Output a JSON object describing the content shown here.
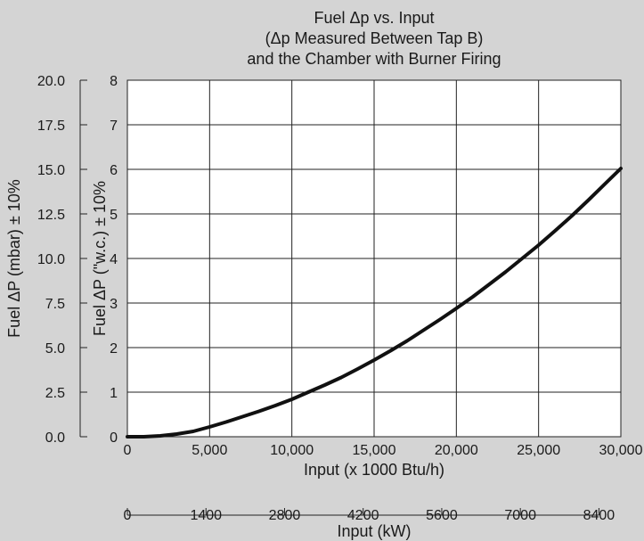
{
  "chart_data": {
    "type": "line",
    "title_lines": [
      "Fuel Δp vs. Input",
      "(Δp Measured Between Tap B)",
      "and the Chamber with Burner Firing"
    ],
    "xlabel": "Input (x 1000 Btu/h)",
    "x2label": "Input (kW)",
    "ylabel": "Fuel ΔP (\"w.c.) ± 10%",
    "y2label": "Fuel ΔP (mbar) ± 10%",
    "xlim": [
      0,
      30000
    ],
    "ylim": [
      0,
      8
    ],
    "y2lim": [
      0,
      20
    ],
    "grid": true,
    "x_ticks": [
      {
        "value": 0,
        "label": "0"
      },
      {
        "value": 5000,
        "label": "5,000"
      },
      {
        "value": 10000,
        "label": "10,000"
      },
      {
        "value": 15000,
        "label": "15,000"
      },
      {
        "value": 20000,
        "label": "20,000"
      },
      {
        "value": 25000,
        "label": "25,000"
      },
      {
        "value": 30000,
        "label": "30,000"
      }
    ],
    "x2_ticks": [
      {
        "value": 0,
        "label": "0"
      },
      {
        "value": 1400,
        "label": "1400"
      },
      {
        "value": 2800,
        "label": "2800"
      },
      {
        "value": 4200,
        "label": "4200"
      },
      {
        "value": 5600,
        "label": "5600"
      },
      {
        "value": 7000,
        "label": "7000"
      },
      {
        "value": 8400,
        "label": "8400"
      }
    ],
    "x2lim": [
      0,
      8790
    ],
    "y_ticks": [
      {
        "value": 0,
        "label": "0"
      },
      {
        "value": 1,
        "label": "1"
      },
      {
        "value": 2,
        "label": "2"
      },
      {
        "value": 3,
        "label": "3"
      },
      {
        "value": 4,
        "label": "4"
      },
      {
        "value": 5,
        "label": "5"
      },
      {
        "value": 6,
        "label": "6"
      },
      {
        "value": 7,
        "label": "7"
      },
      {
        "value": 8,
        "label": "8"
      }
    ],
    "y2_ticks": [
      {
        "value": 0,
        "label": "0.0"
      },
      {
        "value": 2.5,
        "label": "2.5"
      },
      {
        "value": 5,
        "label": "5.0"
      },
      {
        "value": 7.5,
        "label": "7.5"
      },
      {
        "value": 10,
        "label": "10.0"
      },
      {
        "value": 12.5,
        "label": "12.5"
      },
      {
        "value": 15,
        "label": "15.0"
      },
      {
        "value": 17.5,
        "label": "17.5"
      },
      {
        "value": 20,
        "label": "20.0"
      }
    ],
    "series": [
      {
        "color": "#111111",
        "points": [
          [
            0,
            0
          ],
          [
            1000,
            0.0
          ],
          [
            2000,
            0.02
          ],
          [
            3000,
            0.06
          ],
          [
            4000,
            0.12
          ],
          [
            5000,
            0.22
          ],
          [
            6000,
            0.33
          ],
          [
            7000,
            0.45
          ],
          [
            8000,
            0.57
          ],
          [
            9000,
            0.7
          ],
          [
            10000,
            0.84
          ],
          [
            11000,
            1.0
          ],
          [
            12000,
            1.16
          ],
          [
            13000,
            1.33
          ],
          [
            14000,
            1.52
          ],
          [
            15000,
            1.72
          ],
          [
            16000,
            1.93
          ],
          [
            17000,
            2.15
          ],
          [
            18000,
            2.39
          ],
          [
            19000,
            2.63
          ],
          [
            20000,
            2.88
          ],
          [
            21000,
            3.14
          ],
          [
            22000,
            3.42
          ],
          [
            23000,
            3.7
          ],
          [
            24000,
            4.0
          ],
          [
            25000,
            4.3
          ],
          [
            26000,
            4.62
          ],
          [
            27000,
            4.95
          ],
          [
            28000,
            5.3
          ],
          [
            29000,
            5.66
          ],
          [
            30000,
            6.02
          ]
        ]
      }
    ]
  }
}
